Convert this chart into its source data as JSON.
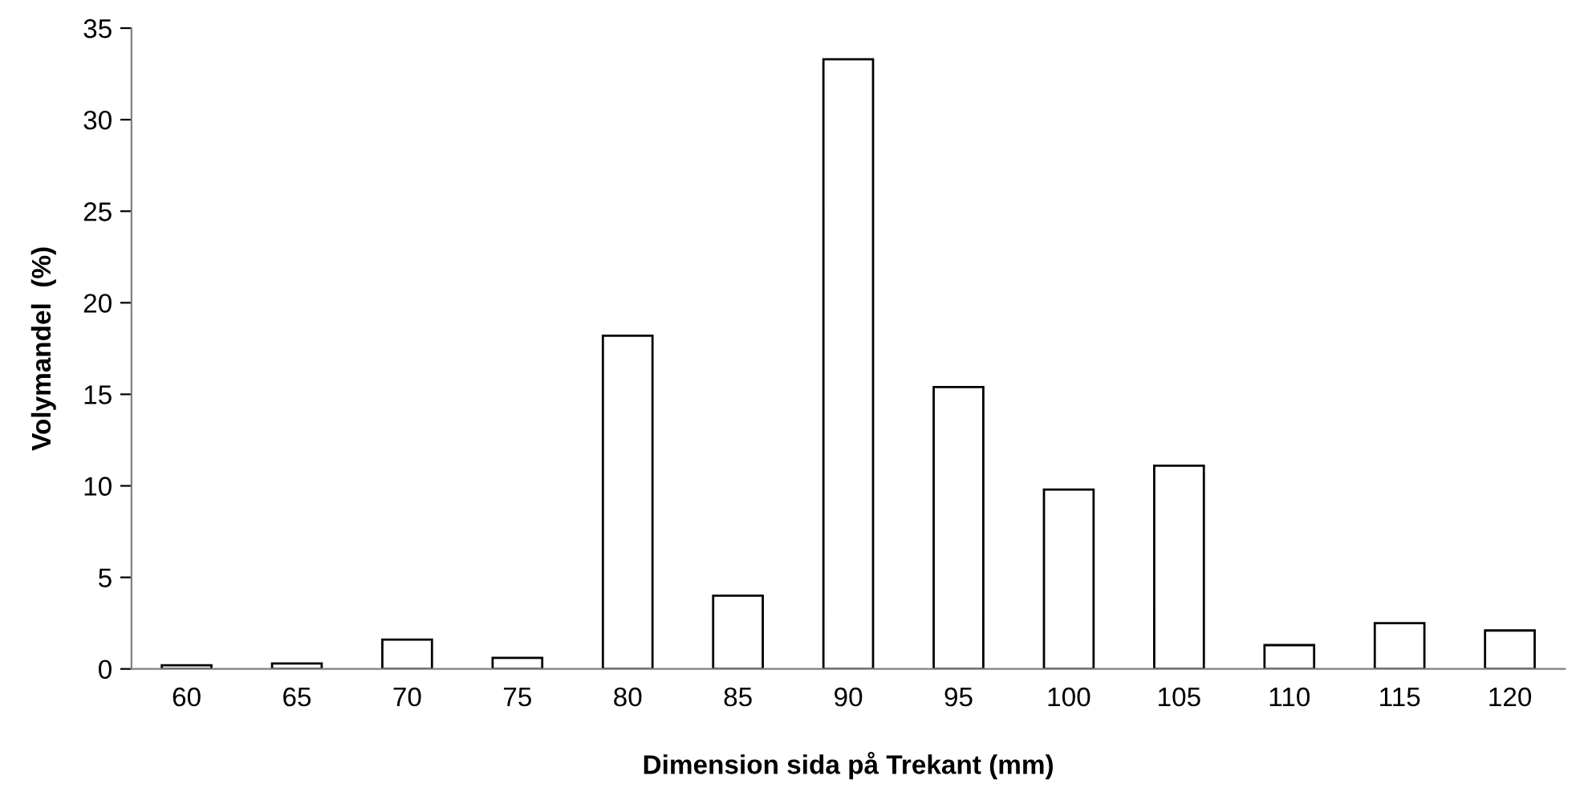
{
  "chart_data": {
    "type": "bar",
    "xlabel": "Dimension sida på Trekant (mm)",
    "ylabel": "Volymandel  (%)",
    "categories": [
      "60",
      "65",
      "70",
      "75",
      "80",
      "85",
      "90",
      "95",
      "100",
      "105",
      "110",
      "115",
      "120"
    ],
    "values": [
      0.2,
      0.3,
      1.6,
      0.6,
      18.2,
      4.0,
      33.3,
      15.4,
      9.8,
      11.1,
      1.3,
      2.5,
      2.1
    ],
    "color": "#ffffff",
    "ylim": [
      0,
      35
    ],
    "yticks": [
      0,
      5,
      10,
      15,
      20,
      25,
      30,
      35
    ],
    "grid": false,
    "legend": false
  }
}
